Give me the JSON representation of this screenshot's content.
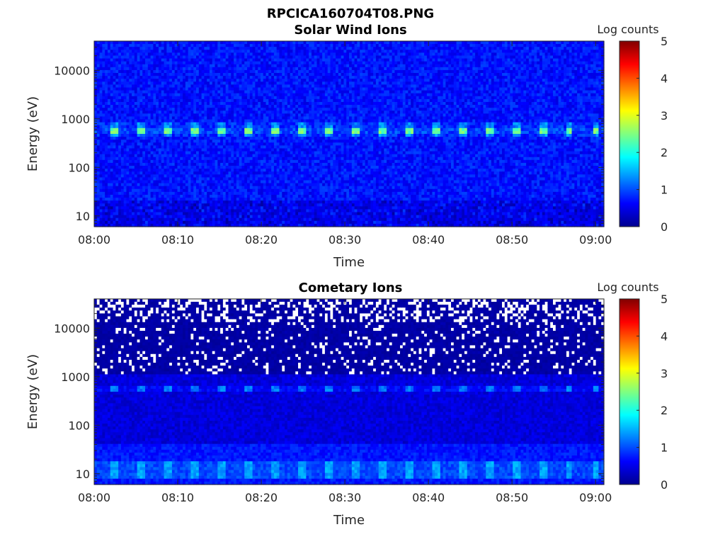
{
  "figure": {
    "title": "RPCICA160704T08.PNG"
  },
  "colormap": {
    "name": "jet",
    "stops": [
      "#00008f",
      "#0000ff",
      "#00ffff",
      "#ffff00",
      "#ff0000",
      "#800000"
    ]
  },
  "chart_data": [
    {
      "type": "heatmap",
      "title": "Solar Wind Ions",
      "xlabel": "Time",
      "ylabel": "Energy (eV)",
      "x_range": [
        "08:00",
        "09:01"
      ],
      "x_ticks": [
        "08:00",
        "08:10",
        "08:20",
        "08:30",
        "08:40",
        "08:50",
        "09:00"
      ],
      "y_scale": "log",
      "y_range": [
        6,
        40000
      ],
      "y_ticks": [
        "10",
        "100",
        "1000",
        "10000"
      ],
      "y_tick_values": [
        10,
        100,
        1000,
        10000
      ],
      "colorbar": {
        "label": "Log counts",
        "range": [
          0,
          5
        ],
        "ticks": [
          "0",
          "1",
          "2",
          "3",
          "4",
          "5"
        ]
      },
      "background_level": 0.7,
      "band": {
        "energy_eV": 580,
        "level": 2.4,
        "period_min": 3.2
      },
      "white_cells": false
    },
    {
      "type": "heatmap",
      "title": "Cometary Ions",
      "xlabel": "Time",
      "ylabel": "Energy (eV)",
      "x_range": [
        "08:00",
        "09:01"
      ],
      "x_ticks": [
        "08:00",
        "08:10",
        "08:20",
        "08:30",
        "08:40",
        "08:50",
        "09:00"
      ],
      "y_scale": "log",
      "y_range": [
        6,
        40000
      ],
      "y_ticks": [
        "10",
        "100",
        "1000",
        "10000"
      ],
      "y_tick_values": [
        10,
        100,
        1000,
        10000
      ],
      "colorbar": {
        "label": "Log counts",
        "range": [
          0,
          5
        ],
        "ticks": [
          "0",
          "1",
          "2",
          "3",
          "4",
          "5"
        ]
      },
      "background_level": 0.3,
      "band": {
        "energy_eV": 560,
        "level": 1.1,
        "period_min": 3.2
      },
      "low_energy_band": {
        "energy_eV": 12,
        "level": 1.4
      },
      "white_cells": true
    }
  ]
}
